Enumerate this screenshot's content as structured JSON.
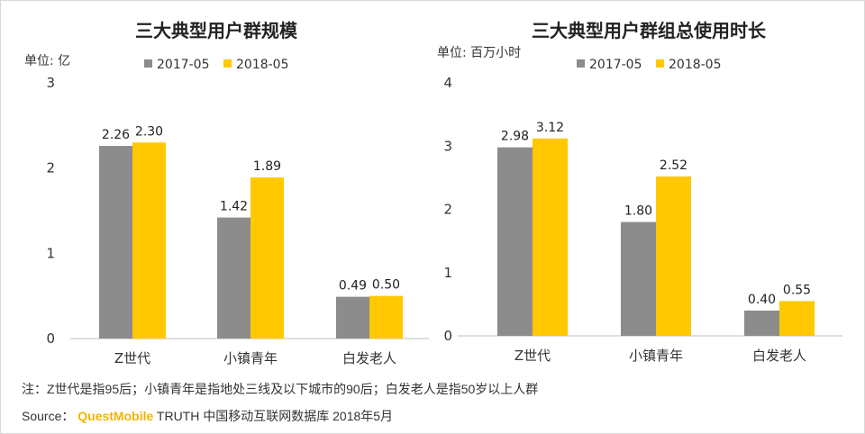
{
  "colors": {
    "series_2017": "#8c8c8c",
    "series_2018": "#ffc800",
    "axis": "#bfbfbf",
    "brand": "#f5b400"
  },
  "footer": {
    "note": "注：Z世代是指95后；小镇青年是指地处三线及以下城市的90后；白发老人是指50岁以上人群",
    "source_prefix": "Source：",
    "source_brand": "QuestMobile",
    "source_rest": " TRUTH 中国移动互联网数据库 2018年5月"
  },
  "chart_data": [
    {
      "type": "bar",
      "title": "三大典型用户群规模",
      "unit_label": "单位: 亿",
      "categories": [
        "Z世代",
        "小镇青年",
        "白发老人"
      ],
      "series": [
        {
          "name": "2017-05",
          "values": [
            2.26,
            1.42,
            0.49
          ],
          "labels": [
            "2.26",
            "1.42",
            "0.49"
          ]
        },
        {
          "name": "2018-05",
          "values": [
            2.3,
            1.89,
            0.5
          ],
          "labels": [
            "2.30",
            "1.89",
            "0.50"
          ]
        }
      ],
      "yticks": [
        "0",
        "1",
        "2",
        "3"
      ],
      "ylim": [
        0,
        3
      ],
      "legend": "top-center",
      "grid": false
    },
    {
      "type": "bar",
      "title": "三大典型用户群组总使用时长",
      "unit_label": "单位: 百万小时",
      "categories": [
        "Z世代",
        "小镇青年",
        "白发老人"
      ],
      "series": [
        {
          "name": "2017-05",
          "values": [
            2.98,
            1.8,
            0.4
          ],
          "labels": [
            "2.98",
            "1.80",
            "0.40"
          ]
        },
        {
          "name": "2018-05",
          "values": [
            3.12,
            2.52,
            0.55
          ],
          "labels": [
            "3.12",
            "2.52",
            "0.55"
          ]
        }
      ],
      "yticks": [
        "0",
        "1",
        "2",
        "3",
        "4"
      ],
      "ylim": [
        0,
        4
      ],
      "legend": "top-center",
      "grid": false
    }
  ]
}
